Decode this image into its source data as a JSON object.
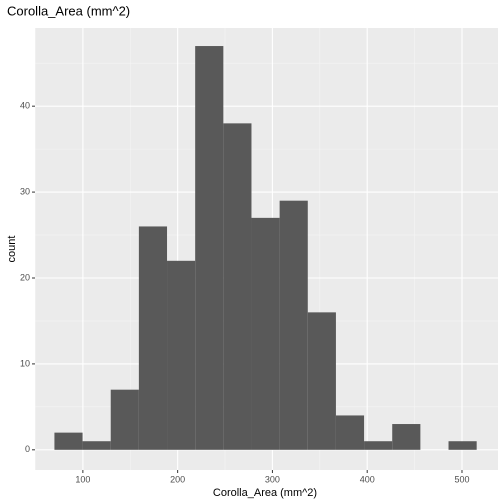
{
  "chart_data": {
    "type": "histogram",
    "title": "Corolla_Area (mm^2)",
    "x_label": "Corolla_Area (mm^2)",
    "y_label": "count",
    "bins": [
      70,
      99.7,
      129.4,
      159.1,
      188.8,
      218.5,
      248.2,
      277.9,
      307.6,
      337.3,
      367,
      396.7,
      426.4,
      456.1,
      485.8,
      515.5
    ],
    "values": [
      2,
      1,
      7,
      26,
      22,
      47,
      38,
      27,
      29,
      16,
      4,
      1,
      3,
      0,
      1
    ],
    "color": "#595959",
    "xlim": [
      49.5,
      538
    ],
    "xticks": [
      100,
      200,
      300,
      400,
      500
    ],
    "xminor": [
      50,
      150,
      250,
      350,
      450
    ],
    "ylim": [
      -2.35,
      49.1
    ],
    "yticks": [
      0,
      10,
      20,
      30,
      40
    ],
    "yminor": [
      5,
      15,
      25,
      35,
      45
    ],
    "grid": true
  }
}
